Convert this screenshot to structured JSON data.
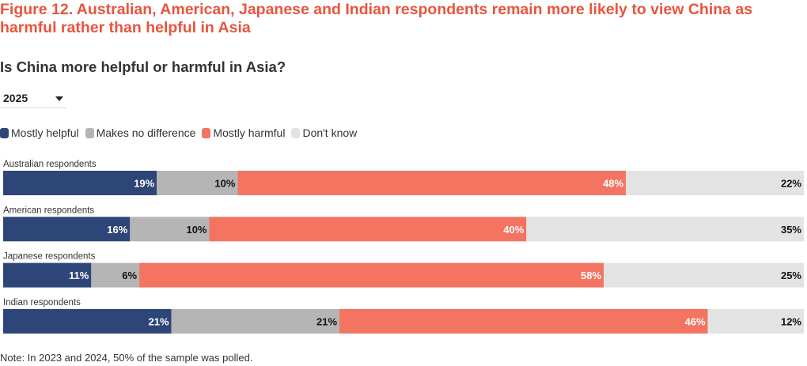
{
  "figure_title": "Figure 12. Australian, American, Japanese and Indian respondents remain more likely to view China as harmful rather than helpful in Asia",
  "subtitle": "Is China more helpful or harmful in Asia?",
  "year_select": {
    "selected": "2025"
  },
  "note": "Note: In 2023 and 2024, 50% of the sample was polled.",
  "chart_data": {
    "type": "bar",
    "orientation": "horizontal",
    "stacked": true,
    "title": "Is China more helpful or harmful in Asia?",
    "categories": [
      "Australian respondents",
      "American respondents",
      "Japanese respondents",
      "Indian respondents"
    ],
    "series": [
      {
        "name": "Mostly helpful",
        "color": "#2e4677",
        "label_color": "#ffffff",
        "values": [
          19,
          16,
          11,
          21
        ]
      },
      {
        "name": "Makes no difference",
        "color": "#b5b5b5",
        "label_color": "#111111",
        "values": [
          10,
          10,
          6,
          21
        ]
      },
      {
        "name": "Mostly harmful",
        "color": "#f27461",
        "label_color": "#ffffff",
        "values": [
          48,
          40,
          58,
          46
        ]
      },
      {
        "name": "Don't know",
        "color": "#e3e3e3",
        "label_color": "#111111",
        "values": [
          22,
          35,
          25,
          12
        ]
      }
    ],
    "legend_position": "top-left",
    "value_suffix": "%"
  }
}
